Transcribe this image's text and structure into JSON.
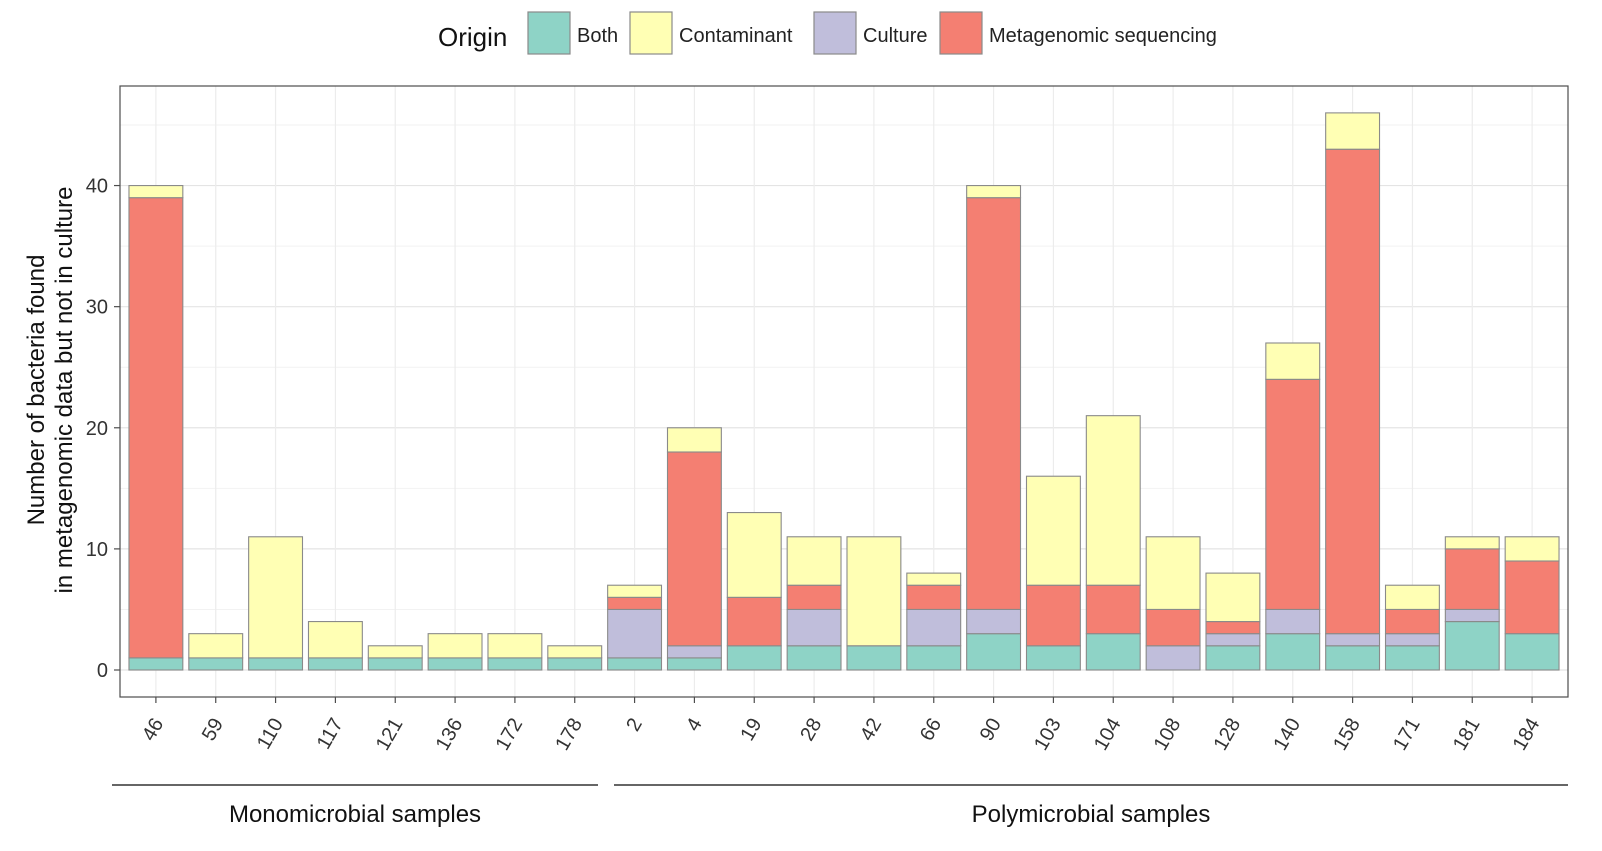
{
  "chart_data": {
    "type": "bar",
    "stacked": true,
    "title": "",
    "xlabel": "",
    "ylabel_lines": [
      "Number of bacteria found",
      "in metagenomic data but not in culture"
    ],
    "ylim": [
      0,
      47
    ],
    "yticks": [
      0,
      10,
      20,
      30,
      40
    ],
    "grid": true,
    "legend_position": "top",
    "legend_title": "Origin",
    "categories": [
      "46",
      "59",
      "110",
      "117",
      "121",
      "136",
      "172",
      "178",
      "2",
      "4",
      "19",
      "28",
      "42",
      "66",
      "90",
      "103",
      "104",
      "108",
      "128",
      "140",
      "158",
      "171",
      "181",
      "184"
    ],
    "series": [
      {
        "name": "Both",
        "color": "#8ED3C6",
        "values": [
          1,
          1,
          1,
          1,
          1,
          1,
          1,
          1,
          1,
          1,
          2,
          2,
          2,
          2,
          3,
          2,
          3,
          0,
          2,
          3,
          2,
          2,
          4,
          3
        ]
      },
      {
        "name": "Culture",
        "color": "#C0BEDB",
        "values": [
          0,
          0,
          0,
          0,
          0,
          0,
          0,
          0,
          4,
          1,
          0,
          3,
          0,
          3,
          2,
          0,
          0,
          2,
          1,
          2,
          1,
          1,
          1,
          0
        ]
      },
      {
        "name": "Metagenomic sequencing",
        "color": "#F47F72",
        "values": [
          38,
          0,
          0,
          0,
          0,
          0,
          0,
          0,
          1,
          16,
          4,
          2,
          0,
          2,
          34,
          5,
          4,
          3,
          1,
          19,
          40,
          2,
          5,
          6
        ]
      },
      {
        "name": "Contaminant",
        "color": "#FFFFB4",
        "values": [
          1,
          2,
          10,
          3,
          1,
          2,
          2,
          1,
          1,
          2,
          7,
          4,
          9,
          1,
          1,
          9,
          14,
          6,
          4,
          3,
          3,
          2,
          1,
          2
        ]
      }
    ],
    "legend_order": [
      "Both",
      "Contaminant",
      "Culture",
      "Metagenomic sequencing"
    ],
    "groups": [
      {
        "label": "Monomicrobial samples",
        "start": 0,
        "end": 7
      },
      {
        "label": "Polymicrobial samples",
        "start": 8,
        "end": 23
      }
    ]
  }
}
